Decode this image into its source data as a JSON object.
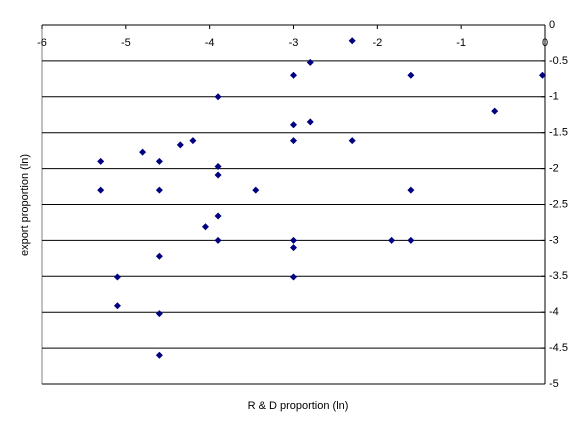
{
  "chart_data": {
    "type": "scatter",
    "x_label": "R & D proportion (ln)",
    "y_label": "export proportion (ln)",
    "xlim": [
      -6,
      0
    ],
    "xticks": [
      -6,
      -5,
      -4,
      -3,
      -2,
      -1,
      0
    ],
    "ylim": [
      -5,
      0
    ],
    "yticks": [
      0,
      -0.5,
      -1,
      -1.5,
      -2,
      -2.5,
      -3,
      -3.5,
      -4,
      -4.5,
      -5
    ],
    "grid": true,
    "color": "#000080",
    "x": [
      -2.3,
      -2.8,
      -3,
      -1.6,
      -0.03,
      -3.9,
      -0.6,
      -3,
      -2.8,
      -3,
      -2.3,
      -4.2,
      -4.35,
      -4.8,
      -5.3,
      -4.6,
      -3.9,
      -3.9,
      -5.3,
      -4.6,
      -3.45,
      -1.6,
      -3.9,
      -4.05,
      -3.9,
      -3,
      -1.83,
      -1.6,
      -3,
      -4.6,
      -5.1,
      -3,
      -5.1,
      -4.6,
      -4.6
    ],
    "values": [
      -0.22,
      -0.52,
      -0.7,
      -0.7,
      -0.7,
      -1.0,
      -1.2,
      -1.39,
      -1.35,
      -1.61,
      -1.61,
      -1.61,
      -1.67,
      -1.77,
      -1.9,
      -1.9,
      -1.97,
      -2.09,
      -2.3,
      -2.3,
      -2.3,
      -2.3,
      -2.66,
      -2.81,
      -3.0,
      -3.0,
      -3.0,
      -3.0,
      -3.1,
      -3.22,
      -3.51,
      -3.51,
      -3.91,
      -4.02,
      -4.6
    ]
  }
}
